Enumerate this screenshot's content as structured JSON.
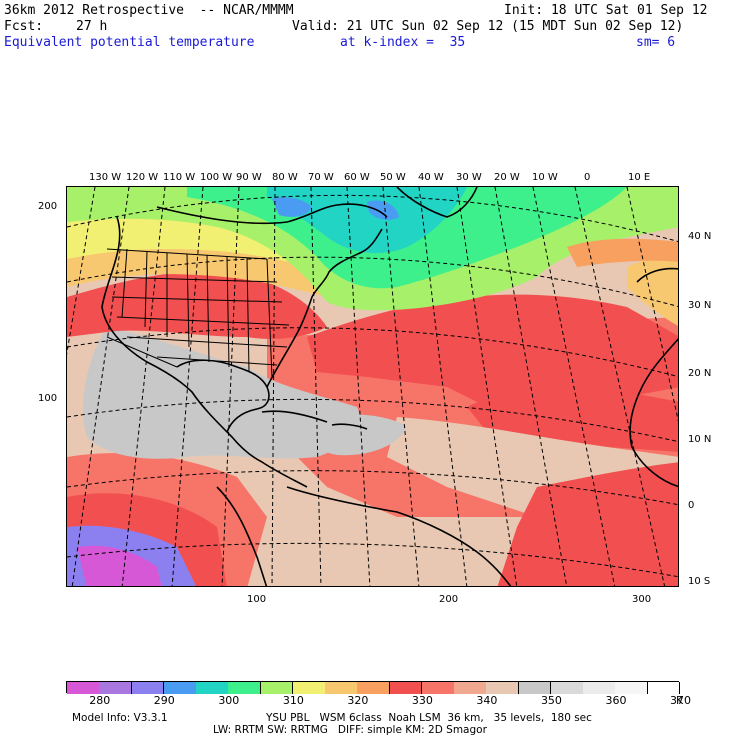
{
  "header": {
    "title_left": "36km 2012 Retrospective  -- NCAR/MMMM",
    "init": "Init: 18 UTC Sat 01 Sep 12",
    "fcst_label": "Fcst:",
    "fcst_value": "27 h",
    "valid": "Valid: 21 UTC Sun 02 Sep 12 (15 MDT Sun 02 Sep 12)",
    "field": "Equivalent potential temperature",
    "level": "at k-index =  35",
    "smoothing": "sm= 6"
  },
  "map": {
    "top_longitudes": [
      "130 W",
      "120 W",
      "110 W",
      "100 W",
      "90 W",
      "80 W",
      "70 W",
      "60 W",
      "50 W",
      "40 W",
      "30 W",
      "20 W",
      "10 W",
      "0",
      "10 E"
    ],
    "right_latitudes": [
      "40 N",
      "30 N",
      "20 N",
      "10 N",
      "0",
      "10 S"
    ],
    "left_grid_ticks": [
      "200",
      "100"
    ],
    "bottom_grid_ticks": [
      "100",
      "200",
      "300"
    ]
  },
  "legend": {
    "values": [
      "280",
      "290",
      "300",
      "310",
      "320",
      "330",
      "340",
      "350",
      "360",
      "370"
    ],
    "unit": "K",
    "colors": [
      "#d658d6",
      "#a878e0",
      "#8c80f0",
      "#4a9cf2",
      "#22d4c4",
      "#3ef08c",
      "#a6f06a",
      "#f2f072",
      "#f8c870",
      "#f8a060",
      "#f25050",
      "#f77468",
      "#f0a890",
      "#e8c8b2",
      "#c8c8c8",
      "#dadada",
      "#ececec",
      "#f6f6f6",
      "#ffffff"
    ]
  },
  "footer": {
    "model": "Model Info: V3.3.1",
    "physics1": "YSU PBL   WSM 6class  Noah LSM  36 km,   35 levels,  180 sec",
    "physics2": "LW: RRTM SW: RRTMG   DIFF: simple KM: 2D Smagor"
  }
}
